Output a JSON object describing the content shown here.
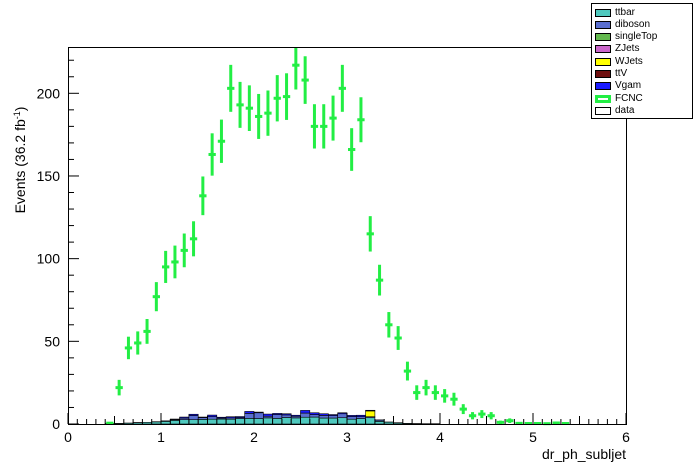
{
  "chart_data": {
    "type": "bar",
    "xlabel": "dr_ph_subljet",
    "ylabel": "Events (36.2 fb",
    "ylabel_sup": "-1",
    "ylabel_close": ")",
    "xlim": [
      0,
      6
    ],
    "ylim": [
      0,
      228
    ],
    "x_ticks": [
      0,
      1,
      2,
      3,
      4,
      5,
      6
    ],
    "y_ticks": [
      0,
      50,
      100,
      150,
      200
    ],
    "bin_width": 0.1,
    "legend_position": "top-right",
    "grid": false,
    "stack_categories": [
      0.4,
      0.5,
      0.6,
      0.7,
      0.8,
      0.9,
      1.0,
      1.1,
      1.2,
      1.3,
      1.4,
      1.5,
      1.6,
      1.7,
      1.8,
      1.9,
      2.0,
      2.1,
      2.2,
      2.3,
      2.4,
      2.5,
      2.6,
      2.7,
      2.8,
      2.9,
      3.0,
      3.1,
      3.2,
      3.3,
      3.4,
      3.5,
      3.6,
      3.7,
      3.8,
      3.9
    ],
    "series": [
      {
        "name": "ttbar",
        "color": "#4fc9be",
        "values": [
          0.3,
          0.4,
          0.6,
          0.8,
          1.0,
          1.3,
          1.6,
          2.2,
          2.6,
          2.6,
          2.8,
          2.9,
          3.0,
          2.9,
          3.3,
          3.4,
          3.3,
          3.7,
          3.4,
          3.9,
          3.7,
          4.1,
          4.2,
          3.6,
          3.6,
          3.8,
          2.9,
          3.3,
          3.8,
          1.6,
          1.1,
          0.7,
          0.4,
          0.3,
          0.2,
          0.2
        ]
      },
      {
        "name": "diboson",
        "color": "#5a6fd0",
        "values": [
          0,
          0,
          0,
          0.1,
          0,
          0.1,
          0.2,
          0.5,
          1.0,
          2.5,
          1.0,
          1.5,
          0.6,
          0.8,
          0.6,
          3.0,
          3.5,
          1.0,
          2.3,
          1.6,
          1.0,
          2.5,
          1.5,
          1.6,
          1.5,
          2.4,
          1.6,
          1.1,
          0.6,
          0.7,
          0.1,
          0.1,
          0,
          0,
          0,
          0
        ]
      },
      {
        "name": "singleTop",
        "color": "#63b94e",
        "values": [
          0,
          0,
          0,
          0,
          0,
          0,
          0,
          0,
          0,
          0,
          0,
          0,
          0,
          0,
          0,
          0,
          0,
          0,
          0,
          0,
          0,
          0,
          0,
          0,
          0,
          0,
          0,
          0,
          0,
          0,
          0,
          0,
          0,
          0,
          0,
          0
        ]
      },
      {
        "name": "ZJets",
        "color": "#cc66cc",
        "values": [
          0,
          0,
          0,
          0,
          0,
          0,
          0,
          0,
          0,
          0,
          0,
          0,
          0,
          0,
          0,
          0,
          0,
          0,
          0,
          0,
          0,
          0,
          0,
          0,
          0,
          0,
          0,
          0,
          0,
          0,
          0,
          0,
          0,
          0,
          0,
          0
        ]
      },
      {
        "name": "WJets",
        "color": "#ffff00",
        "values": [
          0,
          0,
          0,
          0,
          0,
          0,
          0,
          0,
          0,
          0,
          0,
          0,
          0,
          0,
          0,
          0,
          0,
          0,
          0,
          0,
          0,
          0,
          0,
          0,
          0,
          0,
          0,
          0,
          3.5,
          0,
          0,
          0,
          0,
          0,
          0,
          0
        ]
      },
      {
        "name": "ttV",
        "color": "#6f0f0f",
        "values": [
          0,
          0,
          0,
          0,
          0,
          0,
          0,
          0,
          0,
          0,
          0,
          0,
          0,
          0,
          0,
          0,
          0,
          0,
          0,
          0,
          0,
          0,
          0,
          0,
          0,
          0,
          0,
          0,
          0,
          0,
          0,
          0,
          0,
          0,
          0,
          0
        ]
      },
      {
        "name": "Vgam",
        "color": "#1a1aff",
        "values": [
          0,
          0,
          0,
          0,
          0,
          0,
          0.1,
          0.3,
          0.6,
          0.8,
          0.4,
          1.0,
          0.5,
          0.7,
          0.6,
          1.2,
          0.4,
          1.3,
          0.7,
          0.7,
          0.6,
          1.6,
          1.1,
          1.0,
          0.6,
          0.6,
          0.7,
          0.9,
          0.4,
          0.2,
          0,
          0,
          0,
          0,
          0,
          0
        ]
      }
    ],
    "legend": [
      {
        "name": "ttbar",
        "color": "#4fc9be",
        "style": "fill"
      },
      {
        "name": "diboson",
        "color": "#5a6fd0",
        "style": "fill"
      },
      {
        "name": "singleTop",
        "color": "#63b94e",
        "style": "fill"
      },
      {
        "name": "ZJets",
        "color": "#cc66cc",
        "style": "fill"
      },
      {
        "name": "WJets",
        "color": "#ffff00",
        "style": "fill"
      },
      {
        "name": "ttV",
        "color": "#6f0f0f",
        "style": "fill"
      },
      {
        "name": "Vgam",
        "color": "#1a1aff",
        "style": "fill"
      },
      {
        "name": "FCNC",
        "color": "#22ee44",
        "style": "line"
      },
      {
        "name": "data",
        "color": "#ffffff",
        "style": "fill"
      }
    ],
    "signal": {
      "name": "FCNC",
      "color": "#22ee44",
      "x": [
        0.45,
        0.55,
        0.65,
        0.75,
        0.85,
        0.95,
        1.05,
        1.15,
        1.25,
        1.35,
        1.45,
        1.55,
        1.65,
        1.75,
        1.85,
        1.95,
        2.05,
        2.15,
        2.25,
        2.35,
        2.45,
        2.55,
        2.65,
        2.75,
        2.85,
        2.95,
        3.05,
        3.15,
        3.25,
        3.35,
        3.45,
        3.55,
        3.65,
        3.75,
        3.85,
        3.95,
        4.05,
        4.15,
        4.25,
        4.35,
        4.45,
        4.55,
        4.65,
        4.75,
        4.85,
        4.95,
        5.05,
        5.15,
        5.25,
        5.35
      ],
      "y": [
        0.5,
        22,
        46,
        49,
        56,
        77,
        95,
        98,
        105,
        112,
        138,
        163,
        171,
        203,
        193,
        191,
        186,
        188,
        197,
        198,
        217,
        208,
        180,
        180,
        185,
        203,
        166,
        184,
        115,
        87,
        60,
        52,
        32,
        19,
        22,
        19,
        17,
        15,
        9,
        5,
        6,
        5,
        1,
        2,
        0.4,
        0.3,
        0.3,
        0.2,
        0.6,
        0.3
      ],
      "err": [
        0.7,
        4.7,
        6.8,
        7.0,
        7.5,
        8.8,
        9.7,
        9.9,
        10.2,
        10.6,
        11.7,
        12.8,
        13.1,
        14.2,
        13.9,
        13.8,
        13.6,
        13.7,
        14.0,
        14.1,
        14.7,
        14.4,
        13.4,
        13.4,
        13.6,
        14.2,
        12.9,
        13.6,
        10.7,
        9.3,
        7.7,
        7.2,
        5.7,
        4.4,
        4.7,
        4.4,
        4.1,
        3.9,
        3.0,
        2.2,
        2.4,
        2.2,
        1.0,
        1.4,
        0.6,
        0.5,
        0.5,
        0.4,
        0.8,
        0.5
      ]
    }
  }
}
